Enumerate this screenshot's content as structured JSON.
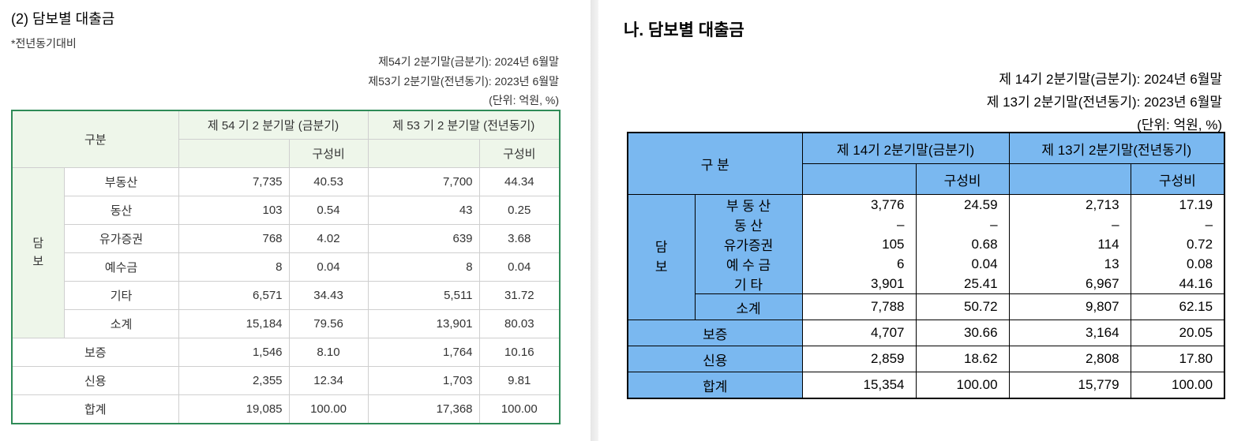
{
  "left": {
    "title": "(2) 담보별 대출금",
    "note": "*전년동기대비",
    "periods": [
      "제54기 2분기말(금분기): 2024년 6월말",
      "제53기 2분기말(전년동기): 2023년 6월말"
    ],
    "unit": "(단위: 억원, %)",
    "table": {
      "header": {
        "category": "구분",
        "current": "제 54 기 2 분기말 (금분기)",
        "previous": "제 53 기 2 분기말 (전년동기)",
        "ratio_current": "구성비",
        "ratio_previous": "구성비"
      },
      "group": "담보",
      "group_rows": [
        {
          "label": "부동산",
          "values": [
            "7,735",
            "40.53",
            "7,700",
            "44.34"
          ]
        },
        {
          "label": "동산",
          "values": [
            "103",
            "0.54",
            "43",
            "0.25"
          ]
        },
        {
          "label": "유가증권",
          "values": [
            "768",
            "4.02",
            "639",
            "3.68"
          ]
        },
        {
          "label": "예수금",
          "values": [
            "8",
            "0.04",
            "8",
            "0.04"
          ]
        },
        {
          "label": "기타",
          "values": [
            "6,571",
            "34.43",
            "5,511",
            "31.72"
          ]
        },
        {
          "label": "소계",
          "values": [
            "15,184",
            "79.56",
            "13,901",
            "80.03"
          ]
        }
      ],
      "other_rows": [
        {
          "label": "보증",
          "values": [
            "1,546",
            "8.10",
            "1,764",
            "10.16"
          ]
        },
        {
          "label": "신용",
          "values": [
            "2,355",
            "12.34",
            "1,703",
            "9.81"
          ]
        },
        {
          "label": "합계",
          "values": [
            "19,085",
            "100.00",
            "17,368",
            "100.00"
          ]
        }
      ]
    }
  },
  "right": {
    "title": "나. 담보별 대출금",
    "periods": [
      "제 14기 2분기말(금분기): 2024년 6월말",
      "제 13기 2분기말(전년동기): 2023년 6월말"
    ],
    "unit": "(단위: 억원, %)",
    "table": {
      "header": {
        "category": "구 분",
        "current": "제 14기 2분기말(금분기)",
        "previous": "제 13기 2분기말(전년동기)",
        "ratio_current": "구성비",
        "ratio_previous": "구성비"
      },
      "group": "담보",
      "group_rows": [
        {
          "label": "부 동 산",
          "values": [
            "3,776",
            "24.59",
            "2,713",
            "17.19"
          ]
        },
        {
          "label": "동 산",
          "values": [
            "–",
            "–",
            "–",
            "–"
          ]
        },
        {
          "label": "유가증권",
          "values": [
            "105",
            "0.68",
            "114",
            "0.72"
          ]
        },
        {
          "label": "예 수 금",
          "values": [
            "6",
            "0.04",
            "13",
            "0.08"
          ]
        },
        {
          "label": "기 타",
          "values": [
            "3,901",
            "25.41",
            "6,967",
            "44.16"
          ]
        },
        {
          "label": "소계",
          "values": [
            "7,788",
            "50.72",
            "9,807",
            "62.15"
          ]
        }
      ],
      "other_rows": [
        {
          "label": "보증",
          "values": [
            "4,707",
            "30.66",
            "3,164",
            "20.05"
          ]
        },
        {
          "label": "신용",
          "values": [
            "2,859",
            "18.62",
            "2,808",
            "17.80"
          ]
        },
        {
          "label": "합계",
          "values": [
            "15,354",
            "100.00",
            "15,779",
            "100.00"
          ]
        }
      ]
    }
  }
}
